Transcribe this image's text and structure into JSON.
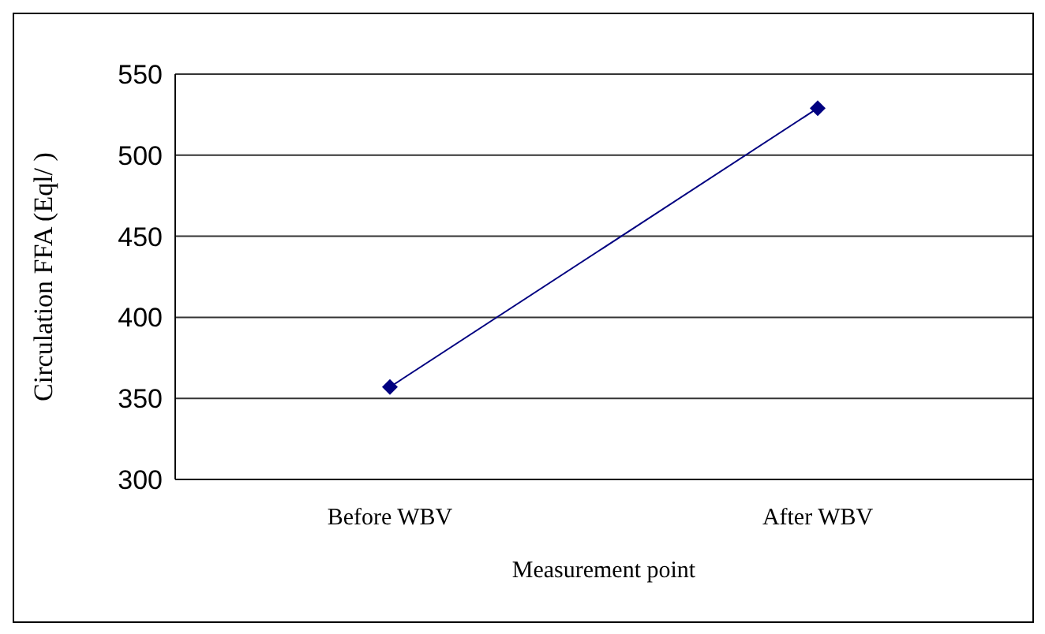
{
  "chart_data": {
    "type": "line",
    "xlabel": "Measurement point",
    "ylabel": "Circulation FFA (Eql/  )",
    "categories": [
      "Before WBV",
      "After WBV"
    ],
    "series": [
      {
        "color": "#000080",
        "values": [
          357,
          529
        ]
      }
    ],
    "ylim": [
      300,
      550
    ],
    "yticks": [
      300,
      350,
      400,
      450,
      500,
      550
    ],
    "grid": "y",
    "marker": "diamond"
  }
}
